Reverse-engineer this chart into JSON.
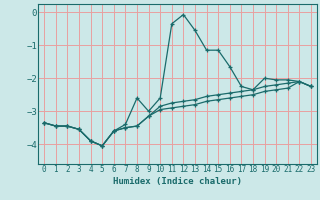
{
  "xlabel": "Humidex (Indice chaleur)",
  "xlim": [
    -0.5,
    23.5
  ],
  "ylim": [
    -4.6,
    0.25
  ],
  "yticks": [
    0,
    -1,
    -2,
    -3,
    -4
  ],
  "xticks": [
    0,
    1,
    2,
    3,
    4,
    5,
    6,
    7,
    8,
    9,
    10,
    11,
    12,
    13,
    14,
    15,
    16,
    17,
    18,
    19,
    20,
    21,
    22,
    23
  ],
  "bg_color": "#cce8e8",
  "grid_color": "#e8a0a0",
  "line_color": "#1a6b6b",
  "line1_x": [
    0,
    1,
    2,
    3,
    4,
    5,
    6,
    7,
    8,
    9,
    10,
    11,
    12,
    13,
    14,
    15,
    16,
    17,
    18,
    19,
    20,
    21,
    22,
    23
  ],
  "line1_y": [
    -3.35,
    -3.45,
    -3.45,
    -3.55,
    -3.9,
    -4.05,
    -3.6,
    -3.4,
    -2.6,
    -3.0,
    -2.6,
    -0.35,
    -0.07,
    -0.55,
    -1.15,
    -1.15,
    -1.65,
    -2.25,
    -2.35,
    -2.0,
    -2.05,
    -2.05,
    -2.1,
    -2.25
  ],
  "line2_x": [
    0,
    1,
    2,
    3,
    4,
    5,
    6,
    7,
    8,
    9,
    10,
    11,
    12,
    13,
    14,
    15,
    16,
    17,
    18,
    19,
    20,
    21,
    22,
    23
  ],
  "line2_y": [
    -3.35,
    -3.45,
    -3.45,
    -3.55,
    -3.9,
    -4.05,
    -3.6,
    -3.5,
    -3.45,
    -3.15,
    -2.85,
    -2.75,
    -2.7,
    -2.65,
    -2.55,
    -2.5,
    -2.45,
    -2.4,
    -2.35,
    -2.25,
    -2.2,
    -2.15,
    -2.1,
    -2.25
  ],
  "line3_x": [
    0,
    1,
    2,
    3,
    4,
    5,
    6,
    7,
    8,
    9,
    10,
    11,
    12,
    13,
    14,
    15,
    16,
    17,
    18,
    19,
    20,
    21,
    22,
    23
  ],
  "line3_y": [
    -3.35,
    -3.45,
    -3.45,
    -3.55,
    -3.9,
    -4.05,
    -3.6,
    -3.5,
    -3.45,
    -3.15,
    -2.95,
    -2.9,
    -2.85,
    -2.8,
    -2.7,
    -2.65,
    -2.6,
    -2.55,
    -2.5,
    -2.4,
    -2.35,
    -2.3,
    -2.1,
    -2.25
  ]
}
